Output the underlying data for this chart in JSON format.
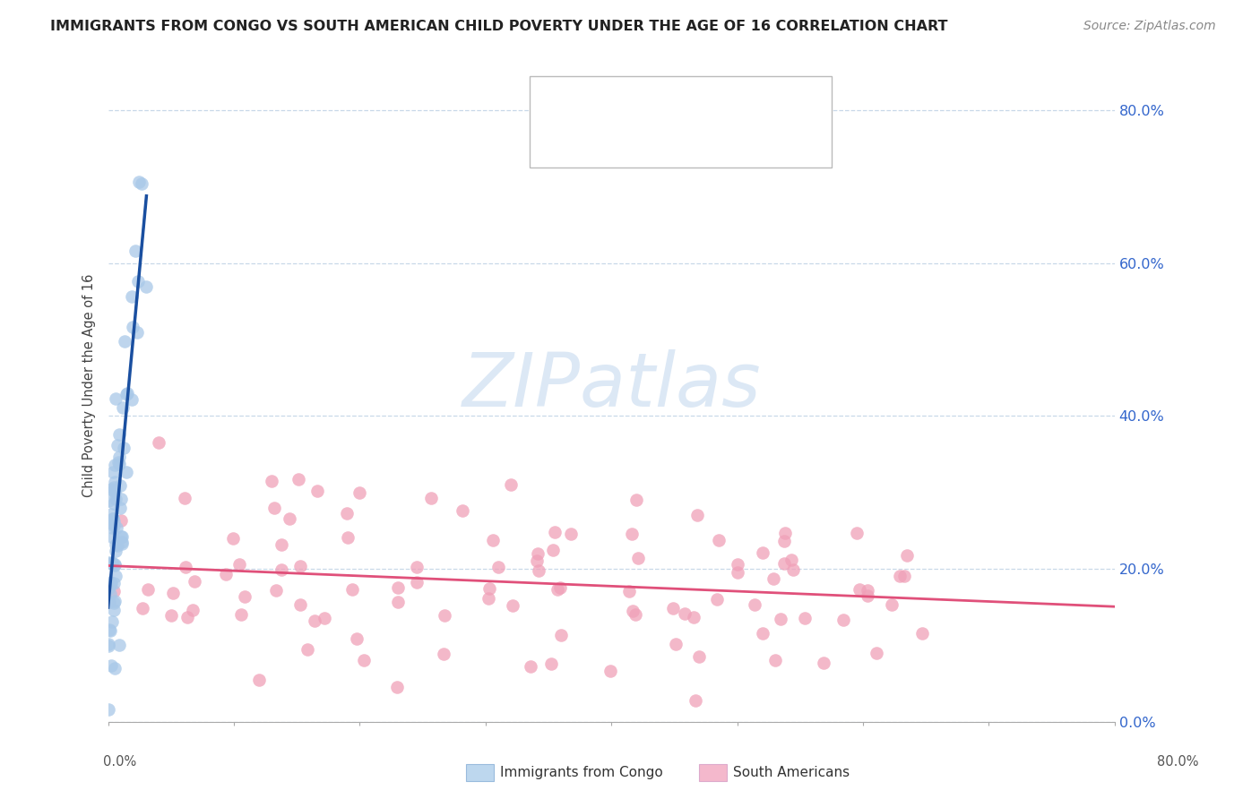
{
  "title": "IMMIGRANTS FROM CONGO VS SOUTH AMERICAN CHILD POVERTY UNDER THE AGE OF 16 CORRELATION CHART",
  "source": "Source: ZipAtlas.com",
  "ylabel": "Child Poverty Under the Age of 16",
  "xlim": [
    0.0,
    0.8
  ],
  "ylim": [
    0.0,
    0.88
  ],
  "yticks": [
    0.0,
    0.2,
    0.4,
    0.6,
    0.8
  ],
  "right_ytick_labels": [
    "0.0%",
    "20.0%",
    "40.0%",
    "60.0%",
    "80.0%"
  ],
  "color_blue_scatter": "#a8c8e8",
  "color_blue_line": "#1a4fa0",
  "color_pink_scatter": "#f0a0b8",
  "color_pink_line": "#e0507a",
  "color_legend_blue_fill": "#bdd7ee",
  "color_legend_pink_fill": "#f4b8cc",
  "legend_text_dark": "#333333",
  "legend_text_blue": "#3366cc",
  "grid_color": "#c8d8e8",
  "background_color": "#ffffff",
  "watermark_color": "#dce8f5",
  "N_blue": 75,
  "N_pink": 105,
  "seed_blue": 7,
  "seed_pink": 99
}
